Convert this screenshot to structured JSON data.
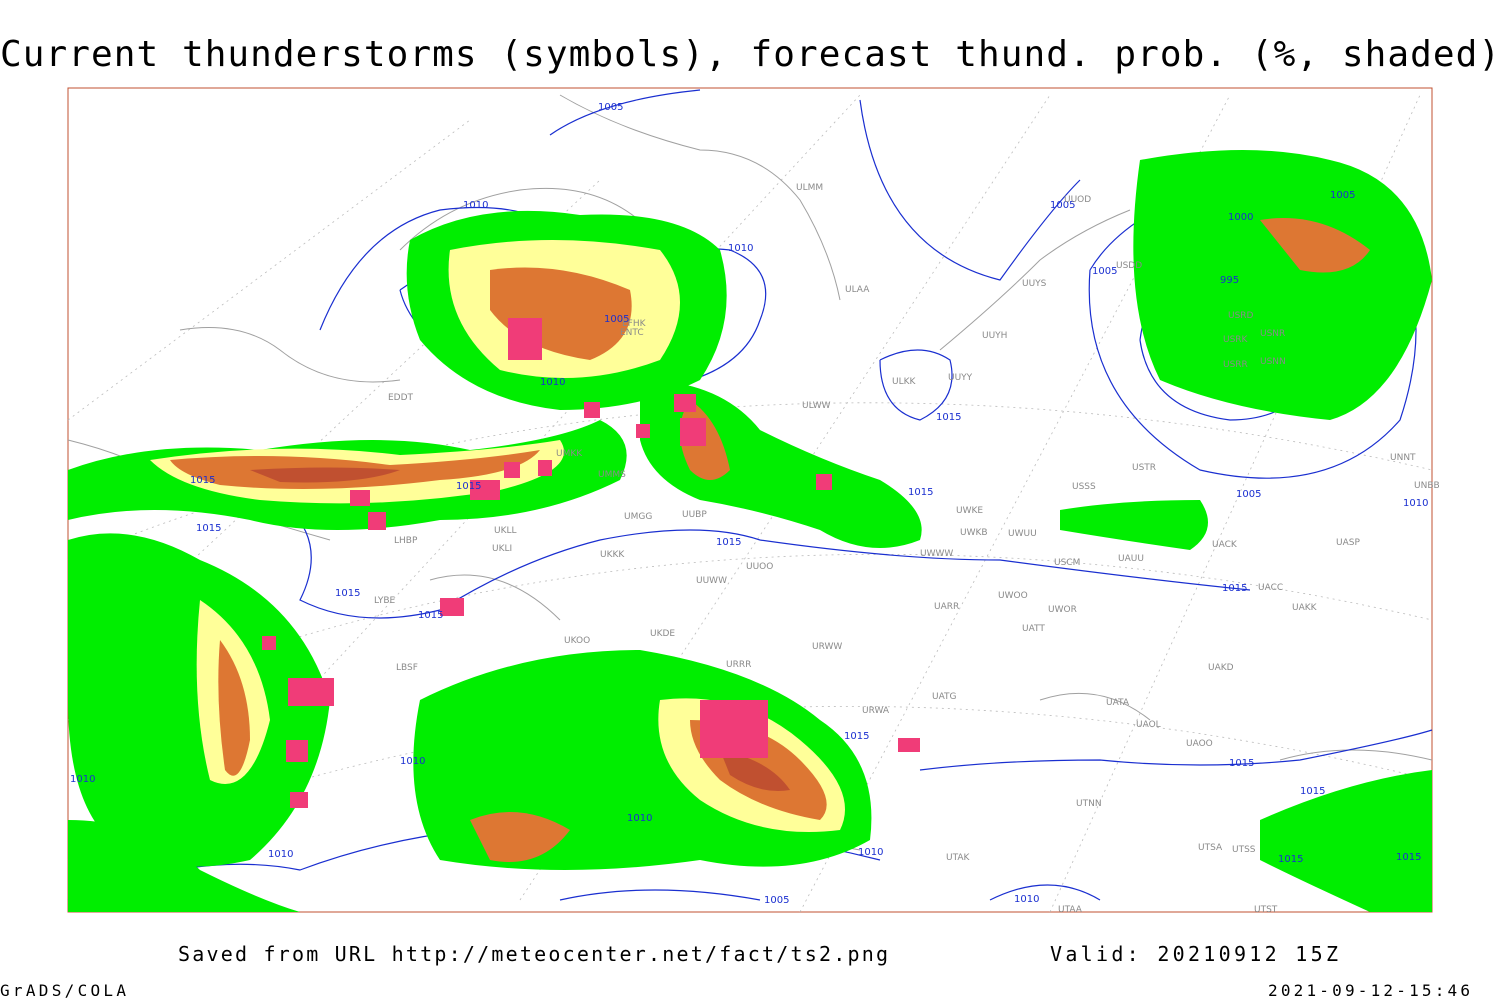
{
  "title": "Current thunderstorms (symbols), forecast thund. prob. (%, shaded)",
  "footer": {
    "source": "Saved from URL http://meteocenter.net/fact/ts2.png",
    "valid": "Valid: 20210912 15Z",
    "software": "GrADS/COLA",
    "timestamp": "2021-09-12-15:46"
  },
  "isobar_labels": [
    "1005",
    "1010",
    "1010",
    "1005",
    "1010",
    "1015",
    "1015",
    "1015",
    "1015",
    "1015",
    "1015",
    "1005",
    "1005",
    "1000",
    "995",
    "1005",
    "1005",
    "1010",
    "1015",
    "1015",
    "1015",
    "1015",
    "1010",
    "1010",
    "1010",
    "1010",
    "1005",
    "1010",
    "1015",
    "1015",
    "1015",
    "1010",
    "1015"
  ],
  "station_labels": [
    "ULMM",
    "ULAA",
    "UUYS",
    "UUYH",
    "ULKK",
    "UUYY",
    "ULWW",
    "UUOD",
    "USDD",
    "USRD",
    "USRK",
    "USNR",
    "USRR",
    "USNN",
    "UMMS",
    "UMGG",
    "UUBP",
    "UKLL",
    "UKLI",
    "UKKK",
    "UUOO",
    "UWWW",
    "UWKE",
    "UWKB",
    "UWUU",
    "USCM",
    "UAUU",
    "UACK",
    "UASP",
    "UACC",
    "UAKK",
    "UARR",
    "UWOO",
    "UWOR",
    "UATT",
    "UAKD",
    "UATA",
    "UAOL",
    "UAOO",
    "UATG",
    "UTNN",
    "UTAK",
    "UTSA",
    "UTSS",
    "UTST",
    "UTAA",
    "USSS",
    "USTR",
    "UNNT",
    "UNBB",
    "UKOO",
    "UKDE",
    "URRR",
    "URWA",
    "URWW",
    "UUWW",
    "LBSF",
    "LYBE",
    "LHBP",
    "EDDT",
    "EFHK",
    "UMKK",
    "ENTC"
  ]
}
